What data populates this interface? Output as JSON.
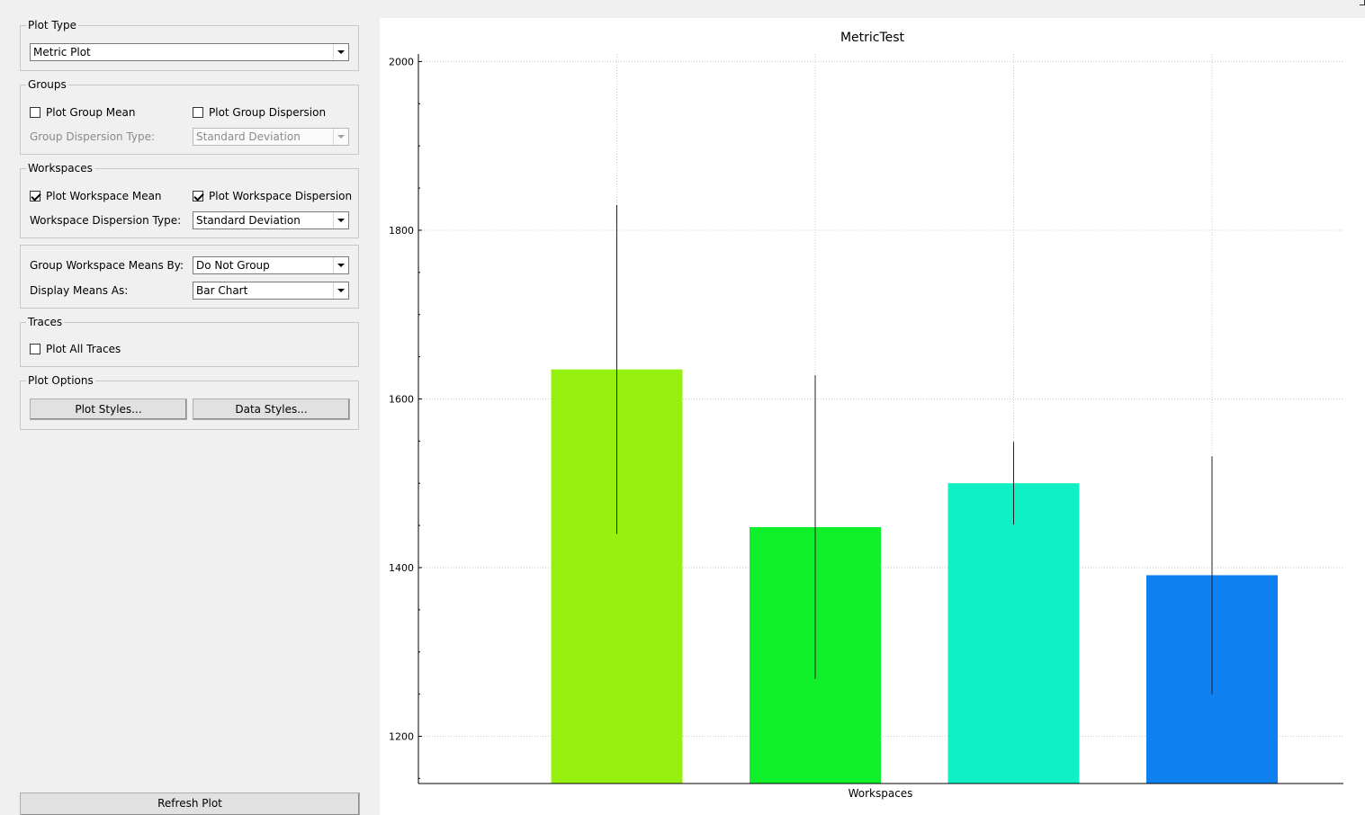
{
  "plot_type": {
    "title": "Plot Type",
    "selected": "Metric Plot"
  },
  "groups": {
    "title": "Groups",
    "plot_group_mean": {
      "label": "Plot Group Mean",
      "checked": false
    },
    "plot_group_dispersion": {
      "label": "Plot Group Dispersion",
      "checked": false
    },
    "dispersion_type_label": "Group Dispersion Type:",
    "dispersion_type_value": "Standard Deviation"
  },
  "workspaces": {
    "title": "Workspaces",
    "plot_workspace_mean": {
      "label": "Plot Workspace Mean",
      "checked": true
    },
    "plot_workspace_dispersion": {
      "label": "Plot Workspace Dispersion",
      "checked": true
    },
    "dispersion_type_label": "Workspace Dispersion Type:",
    "dispersion_type_value": "Standard Deviation"
  },
  "means": {
    "group_by_label": "Group Workspace Means By:",
    "group_by_value": "Do Not Group",
    "display_as_label": "Display Means As:",
    "display_as_value": "Bar Chart"
  },
  "traces": {
    "title": "Traces",
    "plot_all_traces": {
      "label": "Plot All Traces",
      "checked": false
    }
  },
  "plot_options": {
    "title": "Plot Options",
    "plot_styles_label": "Plot Styles...",
    "data_styles_label": "Data Styles..."
  },
  "refresh_label": "Refresh Plot",
  "chart_data": {
    "type": "bar",
    "title": "MetricTest",
    "xlabel": "Workspaces",
    "ylabel": "",
    "ylim": [
      1144,
      2009
    ],
    "yticks": [
      1200,
      1400,
      1600,
      1800,
      2000
    ],
    "grid": true,
    "bars": [
      {
        "value": 1635,
        "err_low": 1440,
        "err_high": 1830,
        "color": "#96f00f"
      },
      {
        "value": 1448,
        "err_low": 1268,
        "err_high": 1628,
        "color": "#0ff02a"
      },
      {
        "value": 1500,
        "err_low": 1451,
        "err_high": 1549,
        "color": "#0ff0c4"
      },
      {
        "value": 1391,
        "err_low": 1250,
        "err_high": 1532,
        "color": "#0f80f0"
      }
    ]
  }
}
